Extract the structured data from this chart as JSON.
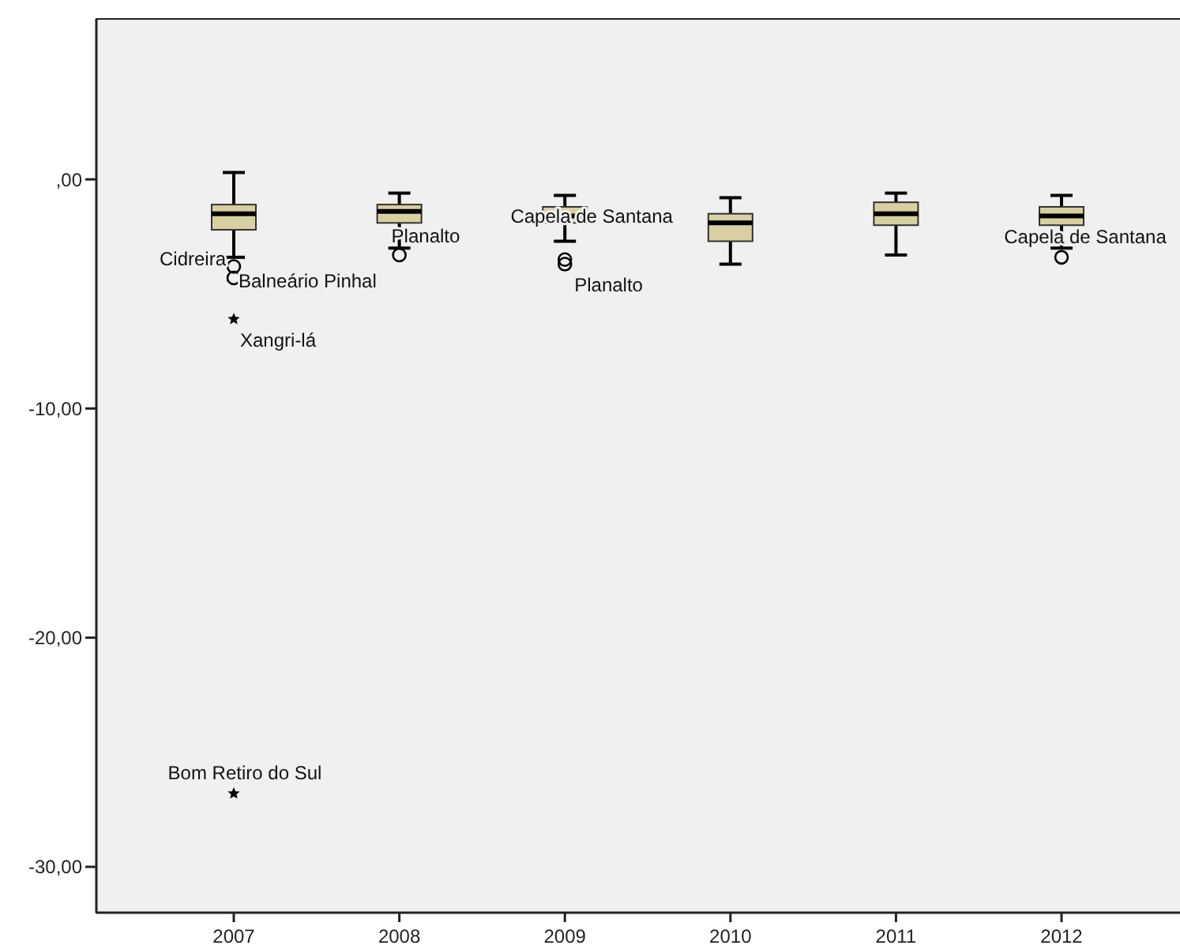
{
  "chart_data": {
    "type": "box",
    "categories": [
      "2007",
      "2008",
      "2009",
      "2010",
      "2011",
      "2012"
    ],
    "boxes": [
      {
        "low": -3.4,
        "q1": -2.2,
        "median": -1.5,
        "q3": -1.1,
        "high": 0.3,
        "outliers": [
          -3.8,
          -4.3,
          -6.1,
          -26.8
        ]
      },
      {
        "low": -3.0,
        "q1": -1.9,
        "median": -1.4,
        "q3": -1.1,
        "high": -0.6,
        "outliers": [
          -3.3
        ]
      },
      {
        "low": -2.7,
        "q1": -1.9,
        "median": -1.6,
        "q3": -1.2,
        "high": -0.7,
        "outliers": [
          -3.5,
          -3.7
        ]
      },
      {
        "low": -3.7,
        "q1": -2.7,
        "median": -1.9,
        "q3": -1.5,
        "high": -0.8
      },
      {
        "low": -3.3,
        "q1": -2.0,
        "median": -1.5,
        "q3": -1.0,
        "high": -0.6
      },
      {
        "low": -3.0,
        "q1": -2.0,
        "median": -1.6,
        "q3": -1.2,
        "high": -0.7,
        "outliers": [
          -3.4
        ]
      }
    ],
    "color": "#d8d0a0",
    "ylim": [
      -32,
      7
    ],
    "yticks": [
      {
        "value": 0,
        "label": ",00"
      },
      {
        "value": -10,
        "label": "-10,00"
      },
      {
        "value": -20,
        "label": "-20,00"
      },
      {
        "value": -30,
        "label": "-30,00"
      }
    ],
    "annotations": [
      "Cidreira",
      "Balneário Pinhal",
      "Xangri-lá",
      "Bom Retiro do Sul",
      "Planalto",
      "Capela de Santana",
      "Planalto",
      "Capela de Santana"
    ],
    "grid": false
  }
}
